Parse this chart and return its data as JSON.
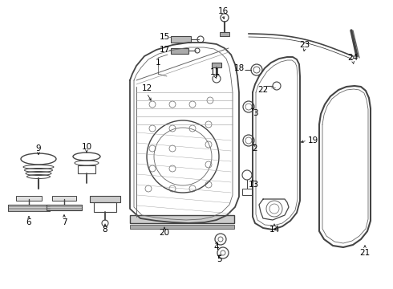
{
  "bg_color": "#ffffff",
  "fig_width": 4.9,
  "fig_height": 3.6,
  "dpi": 100,
  "line_color": "#444444",
  "gray": "#666666",
  "lgray": "#999999"
}
